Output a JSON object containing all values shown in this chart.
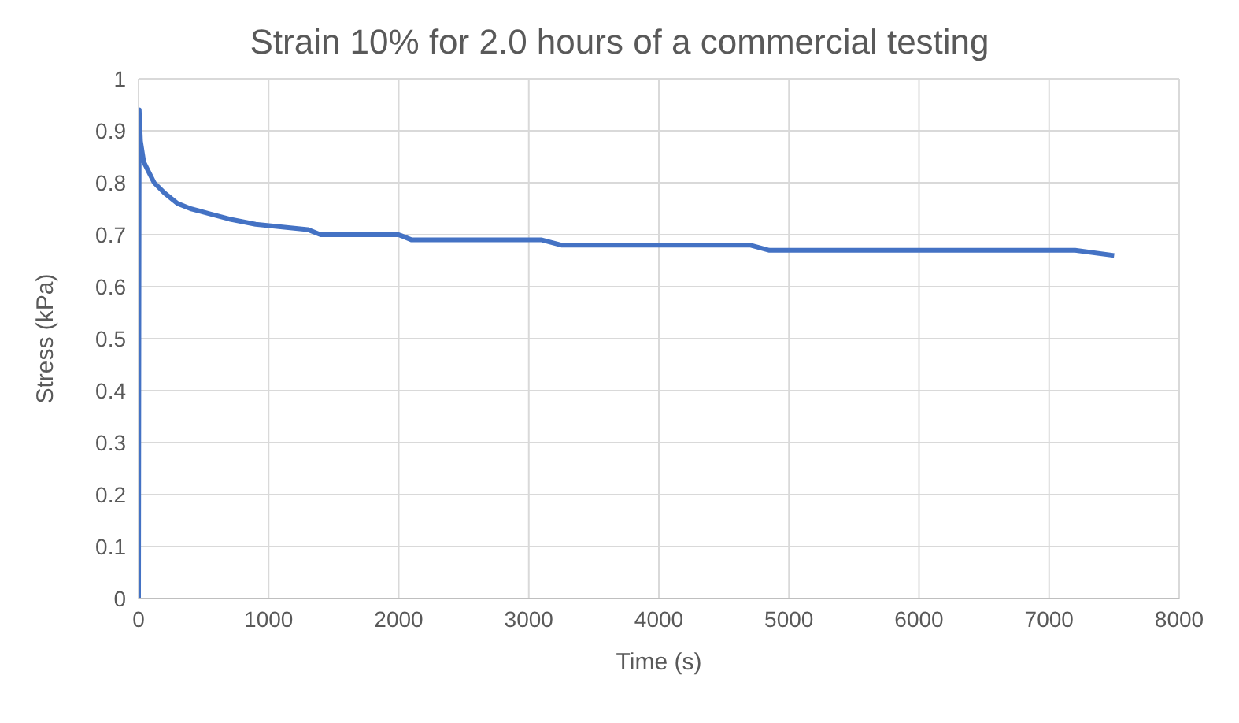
{
  "chart_data": {
    "type": "line",
    "title": "Strain 10% for 2.0 hours of a commercial testing",
    "xlabel": "Time (s)",
    "ylabel": "Stress (kPa)",
    "x": [
      0,
      5,
      15,
      40,
      80,
      120,
      200,
      300,
      400,
      550,
      700,
      900,
      1300,
      1400,
      2000,
      2100,
      3100,
      3250,
      4700,
      4850,
      7200,
      7500
    ],
    "series": [
      {
        "color": "#4472c4",
        "values": [
          0,
          0.94,
          0.88,
          0.84,
          0.82,
          0.8,
          0.78,
          0.76,
          0.75,
          0.74,
          0.73,
          0.72,
          0.71,
          0.7,
          0.7,
          0.69,
          0.69,
          0.68,
          0.68,
          0.67,
          0.67,
          0.66
        ]
      }
    ],
    "xlim": [
      0,
      8000
    ],
    "xticks": [
      0,
      1000,
      2000,
      3000,
      4000,
      5000,
      6000,
      7000,
      8000
    ],
    "ylim": [
      0,
      1
    ],
    "yticks": [
      0,
      0.1,
      0.2,
      0.3,
      0.4,
      0.5,
      0.6,
      0.7,
      0.8,
      0.9,
      1
    ],
    "grid": true,
    "marker": "none",
    "line_style": "solid"
  }
}
